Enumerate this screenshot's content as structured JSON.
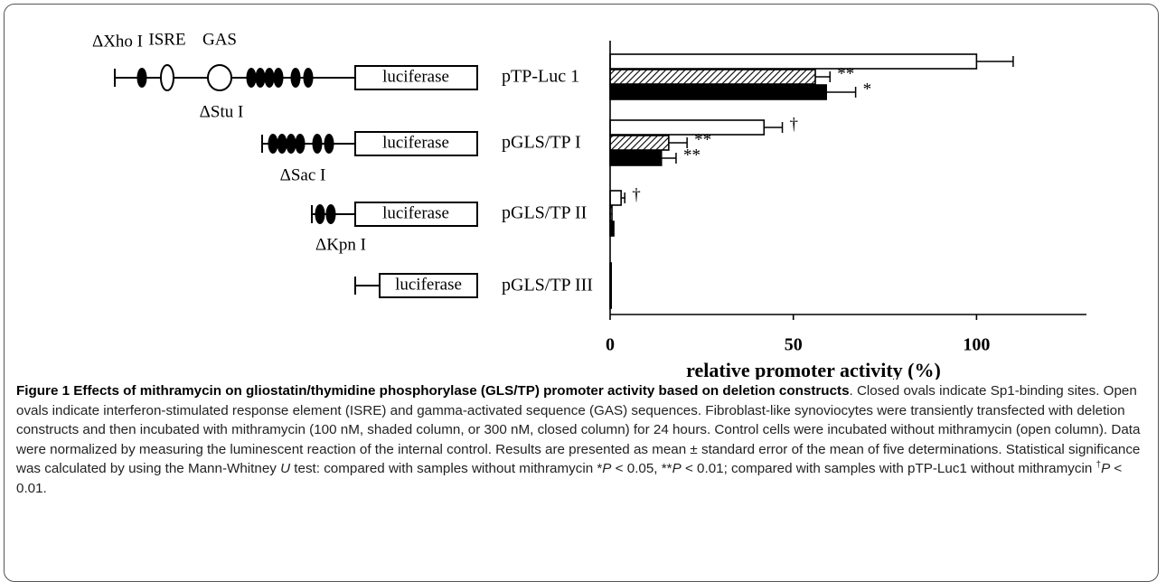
{
  "chart_data": {
    "type": "bar",
    "orientation": "horizontal",
    "categories": [
      "pTP-Luc 1",
      "pGLS/TP I",
      "pGLS/TP II",
      "pGLS/TP III"
    ],
    "series": [
      {
        "color": "#ffffff",
        "values": [
          100,
          42,
          3,
          0.3
        ],
        "errors": [
          10,
          5,
          1,
          null
        ],
        "significance": [
          null,
          "†",
          "†",
          null
        ]
      },
      {
        "color": "#ffffff",
        "pattern": "hatch",
        "values": [
          56,
          16,
          0.5,
          0.3
        ],
        "errors": [
          4,
          5,
          null,
          null
        ],
        "significance": [
          "**",
          "**",
          null,
          null
        ]
      },
      {
        "color": "#000000",
        "values": [
          59,
          14,
          1,
          0.3
        ],
        "errors": [
          8,
          4,
          null,
          null
        ],
        "significance": [
          "*",
          "**",
          null,
          null
        ]
      }
    ],
    "xlabel": "relative promoter activity (%)",
    "xlim": [
      0,
      130
    ],
    "xticks": [
      0,
      50,
      100
    ]
  },
  "diagram": {
    "reporter": [
      "luciferase",
      "luciferase",
      "luciferase",
      "luciferase"
    ],
    "sites": [
      "ΔXho I",
      "ISRE",
      "GAS",
      "ΔStu I",
      "ΔSac I",
      "ΔKpn I"
    ]
  },
  "caption": {
    "segments": [
      {
        "text": "Figure 1 Effects of mithramycin on gliostatin/thymidine phosphorylase (GLS/TP) promoter activity based on deletion constructs",
        "style": "bold"
      },
      {
        "text": ". Closed ovals indicate Sp1-binding sites. Open ovals indicate interferon-stimulated response element (ISRE) and gamma-activated sequence (GAS) sequences. Fibroblast-like synoviocytes were transiently transfected with deletion constructs and then incubated with mithramycin (100 nM, shaded column, or 300 nM, closed column) for 24 hours. Control cells were incubated without mithramycin (open column). Data were normalized by measuring the luminescent reaction of the internal control. Results are presented as mean ± standard error of the mean of five determinations. Statistical significance was calculated by using the Mann-Whitney ",
        "style": "plain"
      },
      {
        "text": "U",
        "style": "italic"
      },
      {
        "text": " test: compared with samples without mithramycin *",
        "style": "plain"
      },
      {
        "text": "P",
        "style": "italic"
      },
      {
        "text": " < 0.05, **",
        "style": "plain"
      },
      {
        "text": "P",
        "style": "italic"
      },
      {
        "text": " < 0.01; compared with samples with pTP-Luc1 without mithramycin ",
        "style": "plain"
      },
      {
        "text": "†",
        "style": "sup"
      },
      {
        "text": "P",
        "style": "italic"
      },
      {
        "text": " < 0.01.",
        "style": "plain"
      }
    ]
  }
}
